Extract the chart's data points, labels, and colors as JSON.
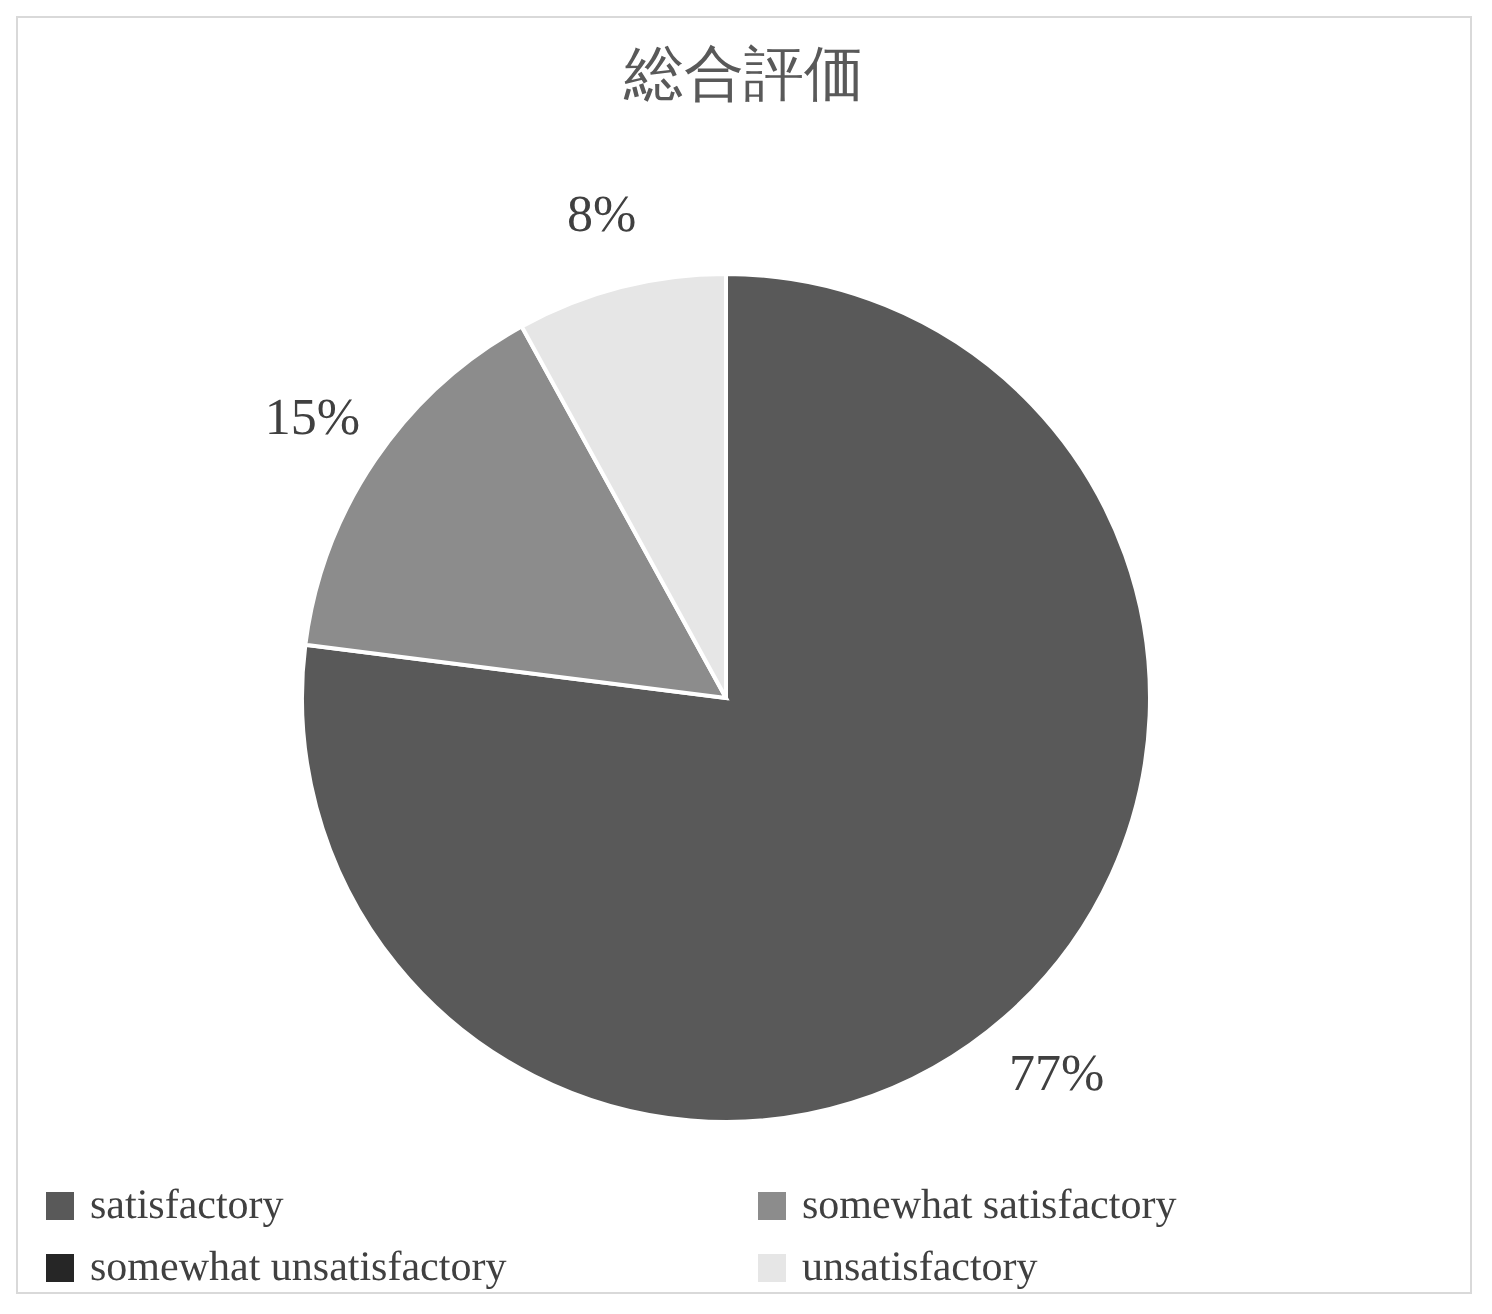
{
  "chart_data": {
    "type": "pie",
    "title": "総合評価",
    "categories": [
      "satisfactory",
      "somewhat satisfactory",
      "somewhat unsatisfactory",
      "unsatisfactory"
    ],
    "values": [
      77,
      15,
      0,
      8
    ],
    "colors": [
      "#595959",
      "#8c8c8c",
      "#262626",
      "#e6e6e6"
    ],
    "value_labels": [
      "77%",
      "15%",
      null,
      "8%"
    ],
    "legend": "bottom"
  }
}
